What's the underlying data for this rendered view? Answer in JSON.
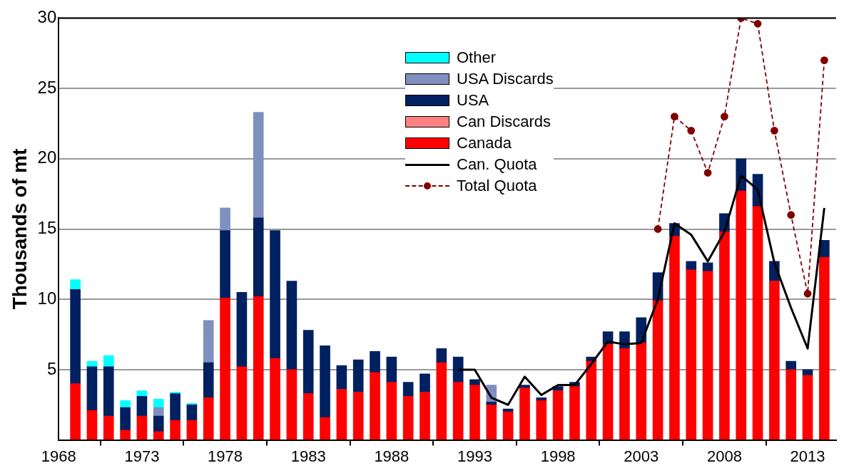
{
  "chart_data": {
    "type": "bar",
    "stacked": true,
    "ylabel": "Thousands of mt",
    "x": [
      1969,
      1970,
      1971,
      1972,
      1973,
      1974,
      1975,
      1976,
      1977,
      1978,
      1979,
      1980,
      1981,
      1982,
      1983,
      1984,
      1985,
      1986,
      1987,
      1988,
      1989,
      1990,
      1991,
      1992,
      1993,
      1994,
      1995,
      1996,
      1997,
      1998,
      1999,
      2000,
      2001,
      2002,
      2003,
      2004,
      2005,
      2006,
      2007,
      2008,
      2009,
      2010,
      2011,
      2012,
      2013,
      2014
    ],
    "series": [
      {
        "name": "Canada",
        "color": "#ff0000",
        "values": [
          4.0,
          2.1,
          1.7,
          0.7,
          1.7,
          0.6,
          1.4,
          1.4,
          3.0,
          10.1,
          5.2,
          10.2,
          5.8,
          5.0,
          3.3,
          1.6,
          3.6,
          3.4,
          4.8,
          4.1,
          3.1,
          3.4,
          5.5,
          4.1,
          3.9,
          2.5,
          2.0,
          3.7,
          2.8,
          3.5,
          3.8,
          5.6,
          6.8,
          6.5,
          6.9,
          9.9,
          14.5,
          12.1,
          12.0,
          14.8,
          17.7,
          16.6,
          11.3,
          5.0,
          4.6,
          13.0
        ]
      },
      {
        "name": "Can Discards",
        "color": "#ff8080",
        "values": [
          null,
          null,
          null,
          null,
          null,
          null,
          null,
          null,
          null,
          null,
          null,
          null,
          null,
          null,
          null,
          null,
          null,
          null,
          null,
          null,
          null,
          null,
          null,
          null,
          null,
          null,
          null,
          null,
          null,
          null,
          null,
          null,
          null,
          null,
          null,
          null,
          null,
          null,
          null,
          null,
          null,
          null,
          null,
          null,
          null,
          null
        ]
      },
      {
        "name": "USA",
        "color": "#002060",
        "values": [
          6.7,
          3.1,
          3.5,
          1.6,
          1.4,
          1.1,
          1.9,
          1.1,
          2.5,
          4.8,
          5.3,
          5.6,
          9.1,
          6.3,
          4.5,
          5.1,
          1.7,
          2.3,
          1.5,
          1.8,
          1.0,
          1.3,
          1.0,
          1.8,
          0.4,
          0.2,
          0.2,
          0.2,
          0.2,
          0.3,
          0.3,
          0.3,
          0.9,
          1.2,
          1.8,
          2.0,
          0.9,
          0.6,
          0.6,
          1.3,
          2.3,
          2.3,
          1.4,
          0.6,
          0.4,
          1.2
        ]
      },
      {
        "name": "USA Discards",
        "color": "#7f8fc0",
        "values": [
          null,
          null,
          null,
          null,
          null,
          0.6,
          null,
          null,
          3.0,
          1.6,
          null,
          7.5,
          null,
          null,
          null,
          null,
          null,
          null,
          null,
          null,
          null,
          null,
          null,
          null,
          null,
          1.2,
          null,
          null,
          null,
          null,
          null,
          null,
          null,
          null,
          null,
          null,
          null,
          null,
          null,
          null,
          null,
          null,
          null,
          null,
          null,
          null
        ]
      },
      {
        "name": "Other",
        "color": "#00ffff",
        "values": [
          0.7,
          0.4,
          0.8,
          0.5,
          0.4,
          0.6,
          0.1,
          0.1,
          null,
          null,
          null,
          null,
          null,
          null,
          null,
          null,
          null,
          null,
          null,
          null,
          null,
          null,
          null,
          null,
          null,
          null,
          null,
          null,
          null,
          null,
          null,
          null,
          null,
          null,
          null,
          null,
          null,
          null,
          null,
          null,
          null,
          null,
          null,
          null,
          null,
          null
        ]
      },
      {
        "name": "Can. Quota",
        "type": "line",
        "color": "#000000",
        "marker": "none",
        "line_style": "solid",
        "x": [
          1992,
          1993,
          1994,
          1995,
          1996,
          1997,
          1998,
          1999,
          2000,
          2001,
          2002,
          2003,
          2004,
          2005,
          2006,
          2007,
          2008,
          2009,
          2010,
          2011,
          2012,
          2013,
          2014
        ],
        "values": [
          5.0,
          5.0,
          3.0,
          2.5,
          4.5,
          3.2,
          3.9,
          3.9,
          5.4,
          7.0,
          6.8,
          6.9,
          10.0,
          15.4,
          14.6,
          12.7,
          14.8,
          18.8,
          17.8,
          12.6,
          9.4,
          6.5,
          16.5
        ]
      },
      {
        "name": "Total Quota",
        "type": "line",
        "color": "#800000",
        "marker": "circle",
        "line_style": "dashed",
        "x": [
          2004,
          2005,
          2006,
          2007,
          2008,
          2009,
          2010,
          2011,
          2012,
          2013,
          2014
        ],
        "values": [
          15,
          23,
          22,
          19,
          23,
          30,
          29.6,
          22,
          16,
          10.4,
          27
        ]
      }
    ],
    "xlim": [
      1968,
      2014.7
    ],
    "xticks": [
      1968,
      1973,
      1978,
      1983,
      1988,
      1993,
      1998,
      2003,
      2008,
      2013
    ],
    "ylim": [
      0,
      30
    ],
    "yticks": [
      {
        "value": 0,
        "label": null
      },
      5,
      10,
      15,
      20,
      25,
      30
    ],
    "grid": "y",
    "legend": "top"
  }
}
